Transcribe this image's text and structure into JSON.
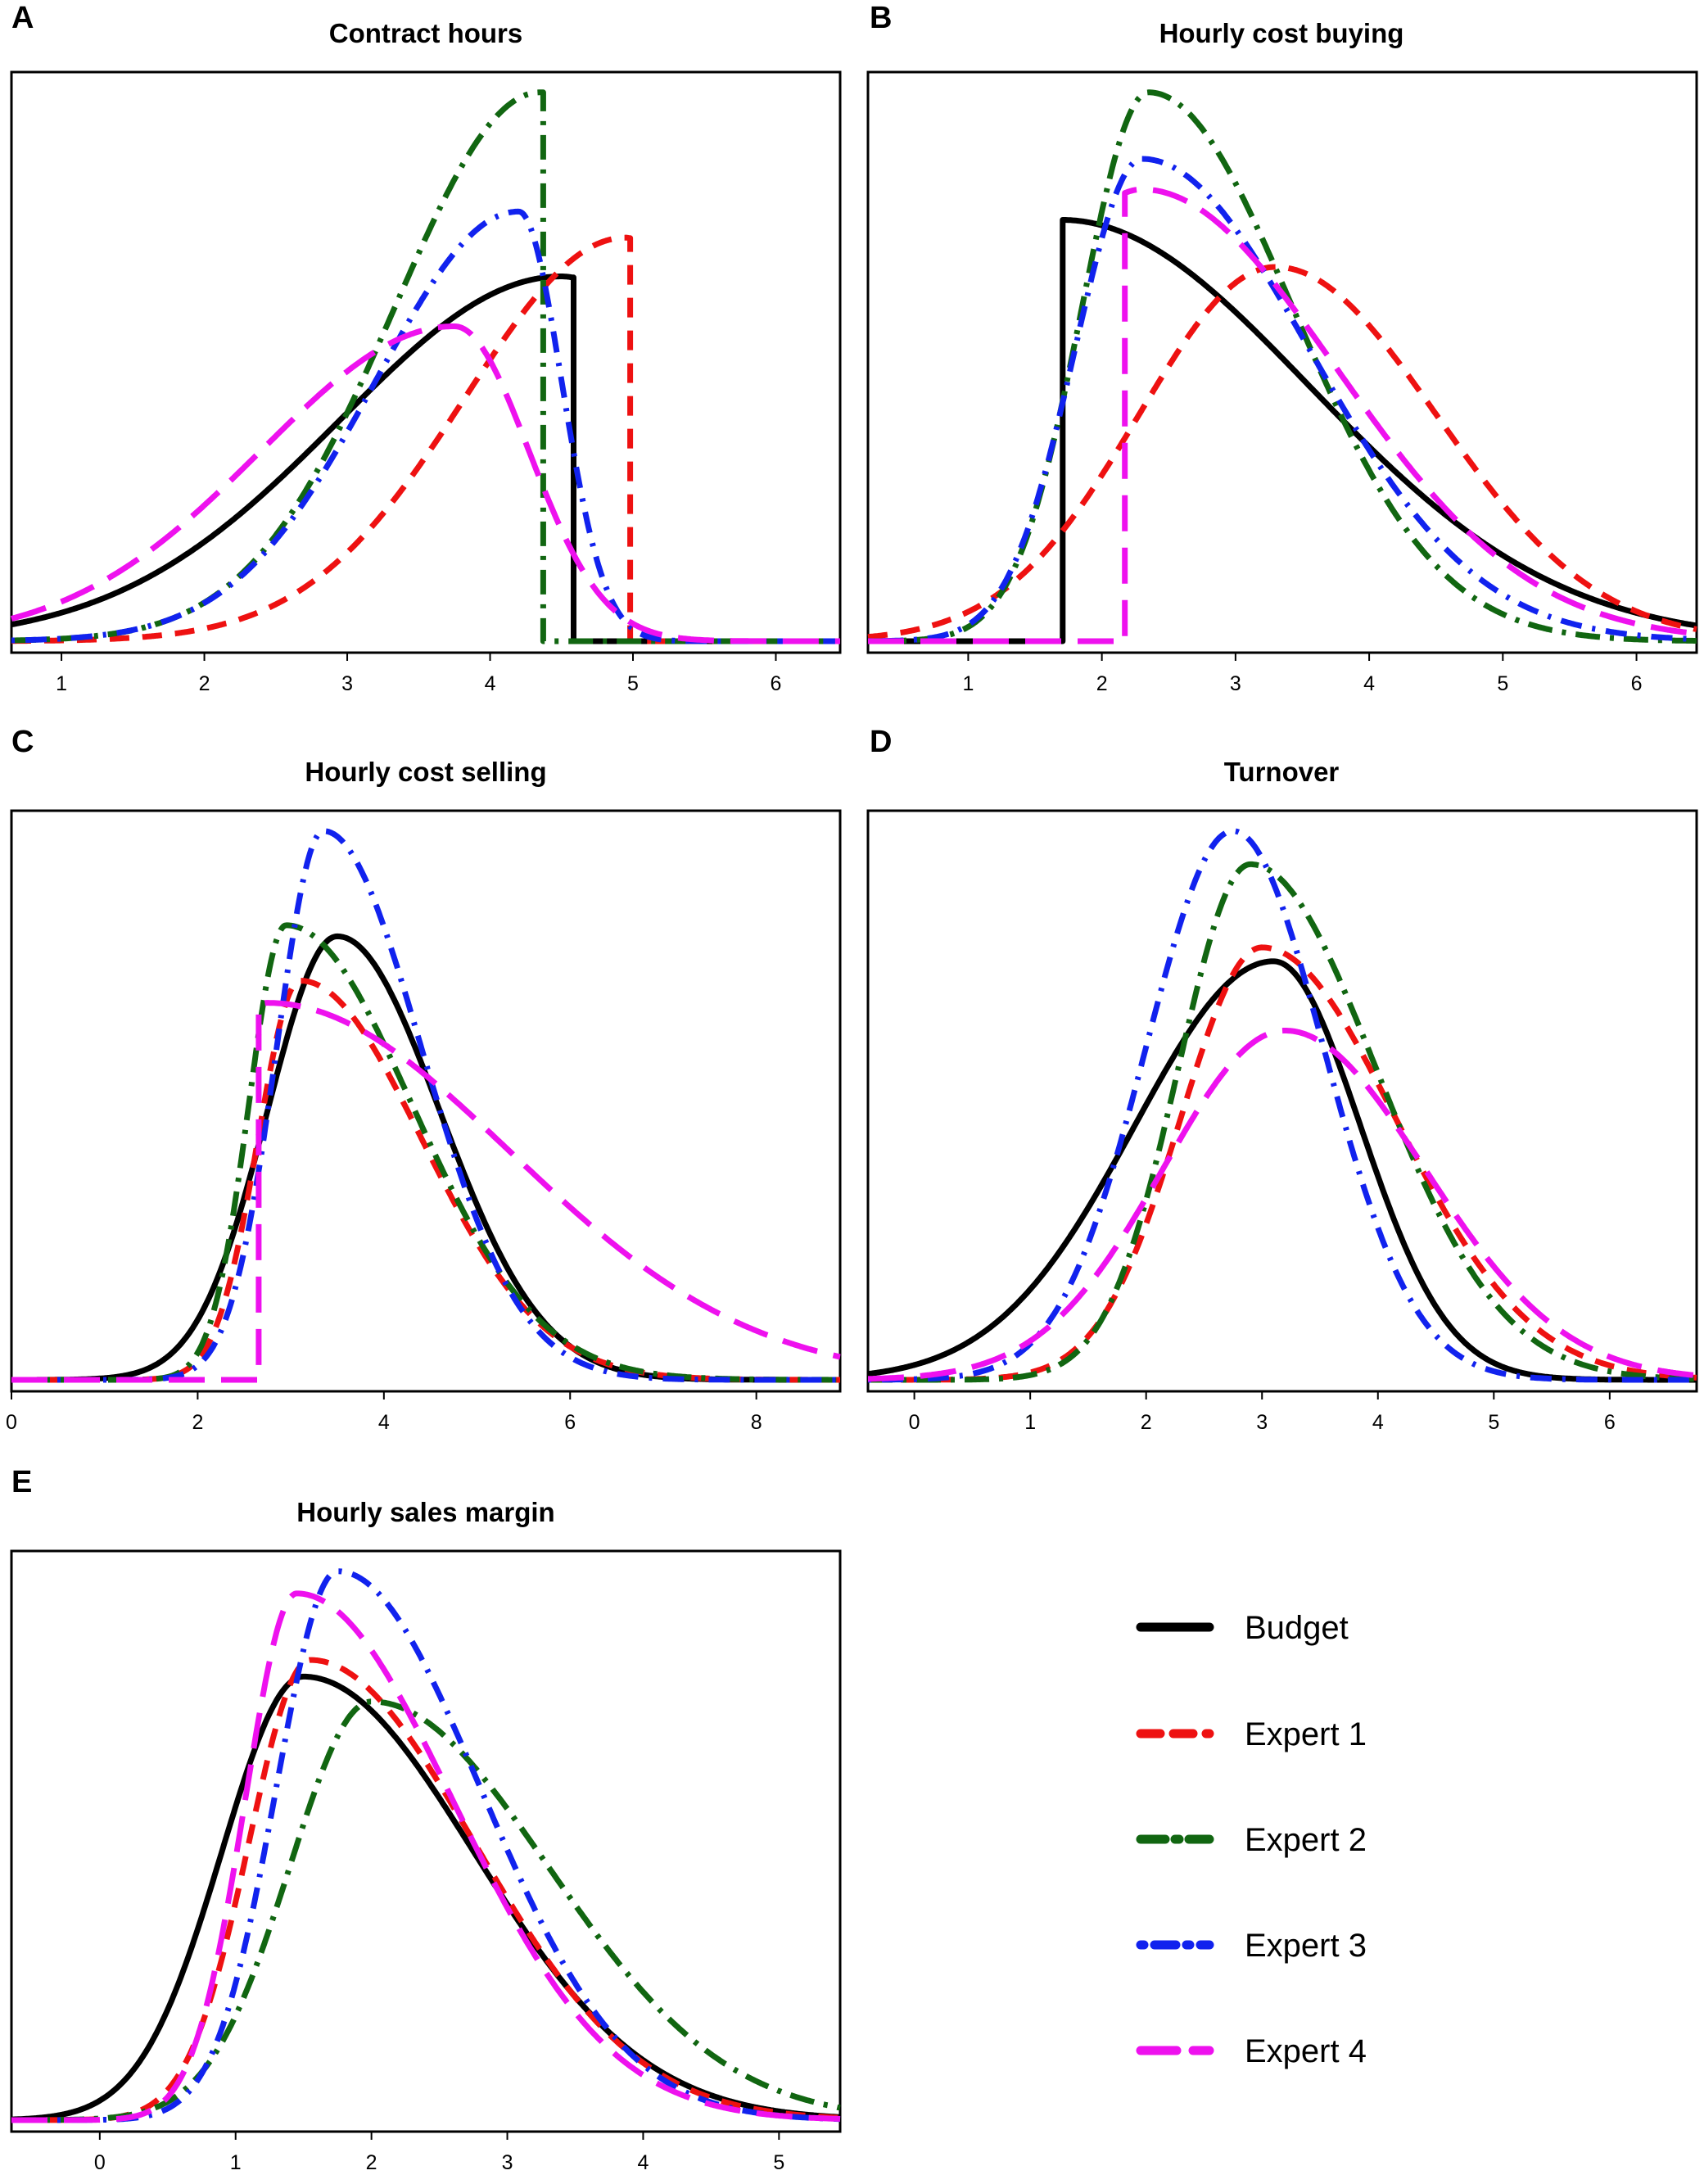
{
  "figure": {
    "background": "#ffffff"
  },
  "legend": {
    "items": [
      {
        "id": "budget",
        "label": "Budget"
      },
      {
        "id": "expert1",
        "label": "Expert 1"
      },
      {
        "id": "expert2",
        "label": "Expert 2"
      },
      {
        "id": "expert3",
        "label": "Expert 3"
      },
      {
        "id": "expert4",
        "label": "Expert 4"
      }
    ]
  },
  "styles": {
    "budget": {
      "color": "#000000",
      "dash": "solid"
    },
    "expert1": {
      "color": "#ee1111",
      "dash": "dashed"
    },
    "expert2": {
      "color": "#116611",
      "dash": "dash-dot-long"
    },
    "expert3": {
      "color": "#1122ee",
      "dash": "dot-dash"
    },
    "expert4": {
      "color": "#ee11ee",
      "dash": "long-dash"
    }
  },
  "chart_data": [
    {
      "panel": "A",
      "title": "Contract hours",
      "type": "line",
      "xlim": [
        0.65,
        6.45
      ],
      "ylim": [
        0,
        1
      ],
      "xticks": [
        1,
        2,
        3,
        4,
        5,
        6
      ],
      "series": [
        {
          "id": "budget",
          "name": "Budget",
          "dist": {
            "kind": "skew",
            "mode": 4.5,
            "sigL": 1.55,
            "sigR": 1.0,
            "lo": 0.65,
            "hi": 4.58,
            "peak": 0.658
          }
        },
        {
          "id": "expert1",
          "name": "Expert 1",
          "dist": {
            "kind": "skew",
            "mode": 4.95,
            "sigL": 1.12,
            "sigR": 0.45,
            "lo": 0.65,
            "hi": 4.98,
            "peak": 0.728
          }
        },
        {
          "id": "expert2",
          "name": "Expert 2",
          "dist": {
            "kind": "skew",
            "mode": 4.35,
            "sigL": 1.02,
            "sigR": 1.0,
            "lo": 0.65,
            "hi": 4.37,
            "peak": 0.99
          }
        },
        {
          "id": "expert3",
          "name": "Expert 3",
          "dist": {
            "kind": "skew",
            "mode": 4.2,
            "sigL": 1.0,
            "sigR": 0.3,
            "lo": 0.65,
            "hi": 6.45,
            "peak": 0.775
          }
        },
        {
          "id": "expert4",
          "name": "Expert 4",
          "dist": {
            "kind": "skew",
            "mode": 3.75,
            "sigL": 1.35,
            "sigR": 0.52,
            "lo": 0.65,
            "hi": 6.45,
            "peak": 0.568
          }
        }
      ]
    },
    {
      "panel": "B",
      "title": "Hourly cost buying",
      "type": "line",
      "xlim": [
        0.25,
        6.45
      ],
      "ylim": [
        0,
        1
      ],
      "xticks": [
        1,
        2,
        3,
        4,
        5,
        6
      ],
      "series": [
        {
          "id": "budget",
          "name": "Budget",
          "dist": {
            "kind": "skew",
            "mode": 1.7,
            "sigL": 1.0,
            "sigR": 1.85,
            "lo": 1.7,
            "hi": 6.45,
            "peak": 0.76
          }
        },
        {
          "id": "expert1",
          "name": "Expert 1",
          "dist": {
            "kind": "skew",
            "mode": 3.3,
            "sigL": 1.02,
            "sigR": 1.2,
            "lo": 0.25,
            "hi": 6.45,
            "peak": 0.675
          }
        },
        {
          "id": "expert2",
          "name": "Expert 2",
          "dist": {
            "kind": "skew",
            "mode": 2.35,
            "sigL": 0.5,
            "sigR": 1.08,
            "lo": 0.25,
            "hi": 6.45,
            "peak": 0.99
          }
        },
        {
          "id": "expert3",
          "name": "Expert 3",
          "dist": {
            "kind": "skew",
            "mode": 2.3,
            "sigL": 0.5,
            "sigR": 1.25,
            "lo": 0.25,
            "hi": 6.45,
            "peak": 0.87
          }
        },
        {
          "id": "expert4",
          "name": "Expert 4",
          "dist": {
            "kind": "skew",
            "mode": 2.3,
            "sigL": 1.0,
            "sigR": 1.45,
            "lo": 2.17,
            "hi": 6.45,
            "peak": 0.815
          }
        }
      ]
    },
    {
      "panel": "C",
      "title": "Hourly cost selling",
      "type": "line",
      "xlim": [
        0.0,
        8.9
      ],
      "ylim": [
        0,
        1
      ],
      "xticks": [
        0,
        2,
        4,
        6,
        8
      ],
      "series": [
        {
          "id": "budget",
          "name": "Budget",
          "dist": {
            "kind": "skew",
            "mode": 3.5,
            "sigL": 0.75,
            "sigR": 1.1,
            "lo": 0.0,
            "hi": 8.9,
            "peak": 0.8
          }
        },
        {
          "id": "expert1",
          "name": "Expert 1",
          "dist": {
            "kind": "skew",
            "mode": 3.1,
            "sigL": 0.45,
            "sigR": 1.3,
            "lo": 0.0,
            "hi": 8.9,
            "peak": 0.72
          }
        },
        {
          "id": "expert2",
          "name": "Expert 2",
          "dist": {
            "kind": "skew",
            "mode": 2.95,
            "sigL": 0.4,
            "sigR": 1.35,
            "lo": 0.0,
            "hi": 8.9,
            "peak": 0.82
          }
        },
        {
          "id": "expert3",
          "name": "Expert 3",
          "dist": {
            "kind": "skew",
            "mode": 3.35,
            "sigL": 0.5,
            "sigR": 1.05,
            "lo": 0.0,
            "hi": 8.9,
            "peak": 0.99
          }
        },
        {
          "id": "expert4",
          "name": "Expert 4",
          "dist": {
            "kind": "skew",
            "mode": 2.75,
            "sigL": 1.0,
            "sigR": 2.6,
            "lo": 2.65,
            "hi": 8.9,
            "peak": 0.68
          }
        }
      ]
    },
    {
      "panel": "D",
      "title": "Turnover",
      "type": "line",
      "xlim": [
        -0.4,
        6.75
      ],
      "ylim": [
        0,
        1
      ],
      "xticks": [
        0,
        1,
        2,
        3,
        4,
        5,
        6
      ],
      "series": [
        {
          "id": "budget",
          "name": "Budget",
          "dist": {
            "kind": "skew",
            "mode": 3.1,
            "sigL": 1.2,
            "sigR": 0.75,
            "lo": -0.4,
            "hi": 6.75,
            "peak": 0.755
          }
        },
        {
          "id": "expert1",
          "name": "Expert 1",
          "dist": {
            "kind": "skew",
            "mode": 3.0,
            "sigL": 0.7,
            "sigR": 1.15,
            "lo": -0.4,
            "hi": 6.75,
            "peak": 0.78
          }
        },
        {
          "id": "expert2",
          "name": "Expert 2",
          "dist": {
            "kind": "skew",
            "mode": 2.9,
            "sigL": 0.62,
            "sigR": 1.08,
            "lo": -0.4,
            "hi": 6.75,
            "peak": 0.93
          }
        },
        {
          "id": "expert3",
          "name": "Expert 3",
          "dist": {
            "kind": "skew",
            "mode": 2.75,
            "sigL": 0.75,
            "sigR": 0.78,
            "lo": -0.4,
            "hi": 6.75,
            "peak": 0.99
          }
        },
        {
          "id": "expert4",
          "name": "Expert 4",
          "dist": {
            "kind": "skew",
            "mode": 3.2,
            "sigL": 1.05,
            "sigR": 1.2,
            "lo": -0.4,
            "hi": 6.75,
            "peak": 0.63
          }
        }
      ]
    },
    {
      "panel": "E",
      "title": "Hourly sales margin",
      "type": "line",
      "xlim": [
        -0.65,
        5.45
      ],
      "ylim": [
        0,
        1
      ],
      "xticks": [
        0,
        1,
        2,
        3,
        4,
        5
      ],
      "series": [
        {
          "id": "budget",
          "name": "Budget",
          "dist": {
            "kind": "skew",
            "mode": 1.5,
            "sigL": 0.6,
            "sigR": 1.25,
            "lo": -0.65,
            "hi": 5.45,
            "peak": 0.8
          }
        },
        {
          "id": "expert1",
          "name": "Expert 1",
          "dist": {
            "kind": "skew",
            "mode": 1.55,
            "sigL": 0.45,
            "sigR": 1.2,
            "lo": -0.65,
            "hi": 5.45,
            "peak": 0.83
          }
        },
        {
          "id": "expert2",
          "name": "Expert 2",
          "dist": {
            "kind": "skew",
            "mode": 2.0,
            "sigL": 0.6,
            "sigR": 1.3,
            "lo": -0.65,
            "hi": 5.45,
            "peak": 0.755
          }
        },
        {
          "id": "expert3",
          "name": "Expert 3",
          "dist": {
            "kind": "skew",
            "mode": 1.75,
            "sigL": 0.45,
            "sigR": 1.05,
            "lo": -0.65,
            "hi": 5.45,
            "peak": 0.99
          }
        },
        {
          "id": "expert4",
          "name": "Expert 4",
          "dist": {
            "kind": "skew",
            "mode": 1.45,
            "sigL": 0.38,
            "sigR": 1.15,
            "lo": -0.65,
            "hi": 5.45,
            "peak": 0.95
          }
        }
      ]
    }
  ]
}
